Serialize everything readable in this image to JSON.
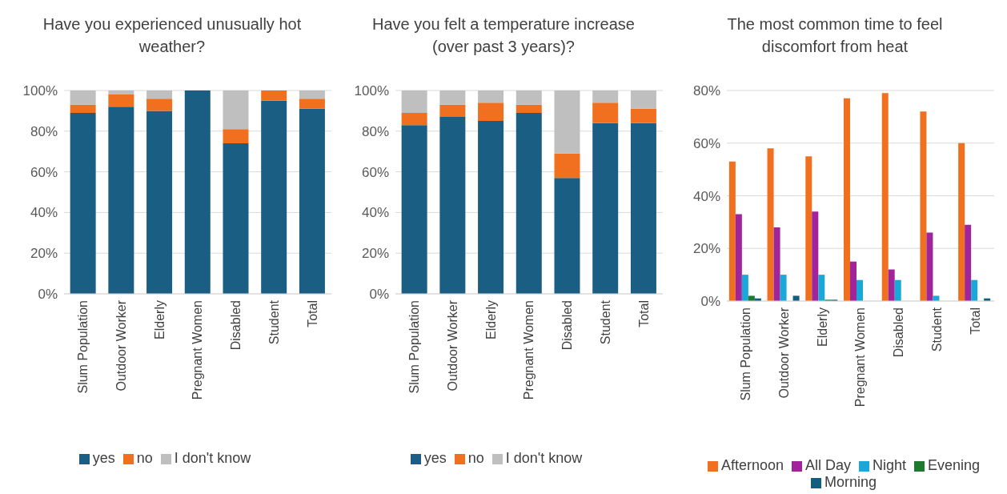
{
  "chart_data": [
    {
      "type": "bar",
      "title": "Have you experienced unusually hot weather?",
      "categories": [
        "Slum Population",
        "Outdoor Worker",
        "Elderly",
        "Pregnant Women",
        "Disabled",
        "Student",
        "Total"
      ],
      "stacked": true,
      "series": [
        {
          "name": "yes",
          "color": "#1b5e83",
          "values": [
            89,
            92,
            90,
            100,
            74,
            95,
            91
          ]
        },
        {
          "name": "no",
          "color": "#f07020",
          "values": [
            4,
            6,
            6,
            0,
            7,
            5,
            5
          ]
        },
        {
          "name": "I don't know",
          "color": "#bfbfbf",
          "values": [
            7,
            2,
            4,
            0,
            19,
            0,
            4
          ]
        }
      ],
      "ylim": [
        0,
        100
      ],
      "yticks": [
        {
          "value": 0,
          "label": "0%"
        },
        {
          "value": 20,
          "label": "20%"
        },
        {
          "value": 40,
          "label": "40%"
        },
        {
          "value": 60,
          "label": "60%"
        },
        {
          "value": 80,
          "label": "80%"
        },
        {
          "value": 100,
          "label": "100%"
        }
      ],
      "grid": "y",
      "legend": "bottom"
    },
    {
      "type": "bar",
      "title": "Have you felt a temperature increase (over past 3 years)?",
      "categories": [
        "Slum Population",
        "Outdoor Worker",
        "Elderly",
        "Pregnant Women",
        "Disabled",
        "Student",
        "Total"
      ],
      "stacked": true,
      "series": [
        {
          "name": "yes",
          "color": "#1b5e83",
          "values": [
            83,
            87,
            85,
            89,
            57,
            84,
            84
          ]
        },
        {
          "name": "no",
          "color": "#f07020",
          "values": [
            6,
            6,
            9,
            4,
            12,
            10,
            7
          ]
        },
        {
          "name": "I don't know",
          "color": "#bfbfbf",
          "values": [
            11,
            7,
            6,
            7,
            31,
            6,
            9
          ]
        }
      ],
      "ylim": [
        0,
        100
      ],
      "yticks": [
        {
          "value": 0,
          "label": "0%"
        },
        {
          "value": 20,
          "label": "20%"
        },
        {
          "value": 40,
          "label": "40%"
        },
        {
          "value": 60,
          "label": "60%"
        },
        {
          "value": 80,
          "label": "80%"
        },
        {
          "value": 100,
          "label": "100%"
        }
      ],
      "grid": "y",
      "legend": "bottom"
    },
    {
      "type": "bar",
      "title": "The most common time to feel discomfort from heat",
      "categories": [
        "Slum Population",
        "Outdoor Worker",
        "Elderly",
        "Pregnant Women",
        "Disabled",
        "Student",
        "Total"
      ],
      "series": [
        {
          "name": "Afternoon",
          "color": "#f07020",
          "values": [
            53,
            58,
            55,
            77,
            79,
            72,
            60
          ]
        },
        {
          "name": "All Day",
          "color": "#a0259a",
          "values": [
            33,
            28,
            34,
            15,
            12,
            26,
            29
          ]
        },
        {
          "name": "Night",
          "color": "#1aa8d8",
          "values": [
            10,
            10,
            10,
            8,
            8,
            2,
            8
          ]
        },
        {
          "name": "Evening",
          "color": "#1e7a2e",
          "values": [
            2,
            0,
            0.5,
            0,
            0,
            0,
            0
          ]
        },
        {
          "name": "Morning",
          "color": "#125e7e",
          "values": [
            1,
            2,
            0.5,
            0,
            0,
            0,
            1
          ]
        }
      ],
      "ylim": [
        0,
        80
      ],
      "yticks": [
        {
          "value": 0,
          "label": "0%"
        },
        {
          "value": 20,
          "label": "20%"
        },
        {
          "value": 40,
          "label": "40%"
        },
        {
          "value": 60,
          "label": "60%"
        },
        {
          "value": 80,
          "label": "80%"
        }
      ],
      "grid": "y",
      "legend": "bottom"
    }
  ]
}
